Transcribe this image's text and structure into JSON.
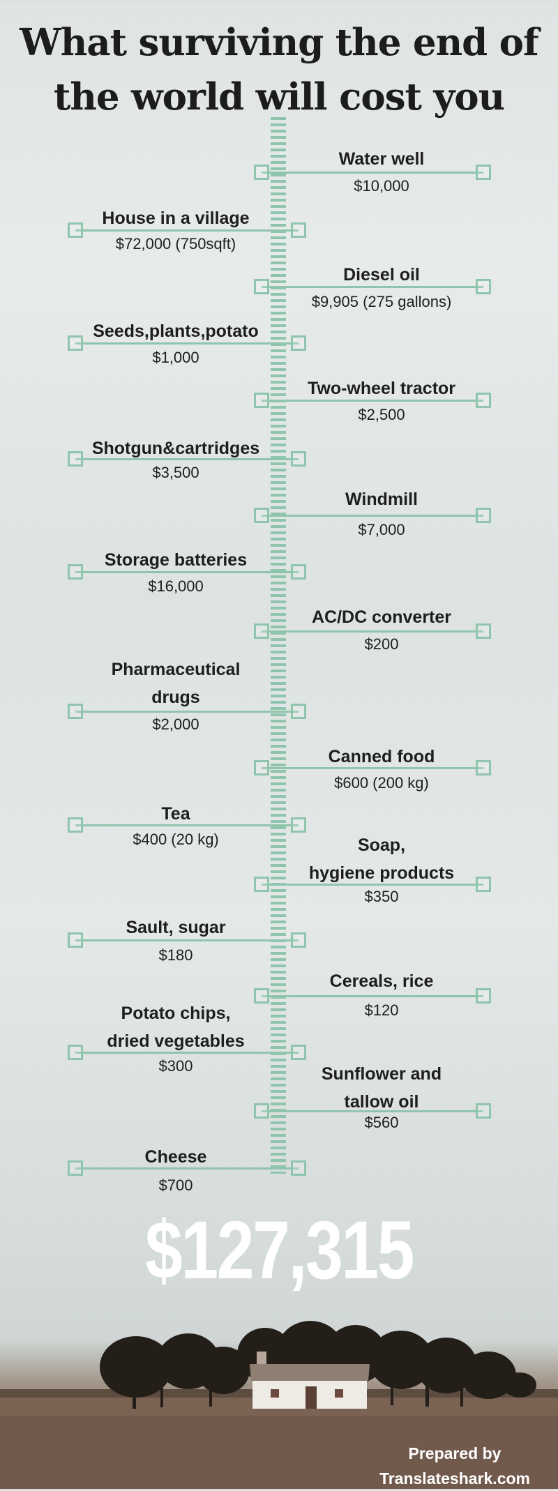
{
  "title_line1": "What surviving the end of",
  "title_line2": "the world will cost you",
  "items": [
    {
      "label": "Water well",
      "price": "$10,000"
    },
    {
      "label": "House in a village",
      "price": "$72,000 (750sqft)"
    },
    {
      "label": "Diesel oil",
      "price": "$9,905 (275 gallons)"
    },
    {
      "label": "Seeds,plants,potato",
      "price": "$1,000"
    },
    {
      "label": "Two-wheel tractor",
      "price": "$2,500"
    },
    {
      "label": "Shotgun&cartridges",
      "price": "$3,500"
    },
    {
      "label": "Windmill",
      "price": "$7,000"
    },
    {
      "label": "Storage batteries",
      "price": "$16,000"
    },
    {
      "label": "AC/DC converter",
      "price": "$200"
    },
    {
      "label_line1": "Pharmaceutical",
      "label_line2": "drugs",
      "price": "$2,000"
    },
    {
      "label": "Canned food",
      "price": "$600 (200 kg)"
    },
    {
      "label": "Tea",
      "price": "$400 (20 kg)"
    },
    {
      "label_line1": "Soap,",
      "label_line2": "hygiene products",
      "price": "$350"
    },
    {
      "label": "Sault, sugar",
      "price": "$180"
    },
    {
      "label": "Cereals, rice",
      "price": "$120"
    },
    {
      "label_line1": "Potato chips,",
      "label_line2": "dried vegetables",
      "price": "$300"
    },
    {
      "label_line1": "Sunflower and",
      "label_line2": "tallow oil",
      "price": "$560"
    },
    {
      "label": "Cheese",
      "price": "$700"
    }
  ],
  "total": "$127,315",
  "footer_line1": "Prepared by",
  "footer_line2": "Translateshark.com",
  "colors": {
    "accent": "#8fc4ad",
    "text": "#1e1e1e",
    "total": "#ffffff"
  }
}
